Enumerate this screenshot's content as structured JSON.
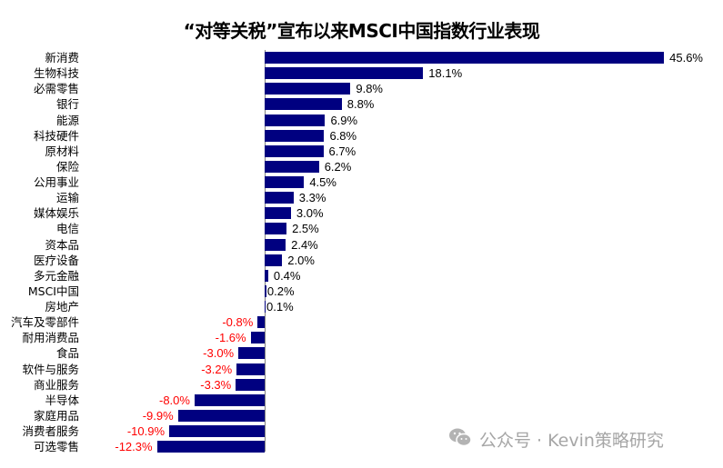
{
  "chart_data": {
    "type": "bar",
    "orientation": "horizontal",
    "title": "“对等关税”宣布以来MSCI中国指数行业表现",
    "xlabel": "",
    "ylabel": "",
    "unit": "%",
    "grid": false,
    "legend": null,
    "bar_color": "#000080",
    "positive_label_color": "#000000",
    "negative_label_color": "#ff0000",
    "categories": [
      "新消费",
      "生物科技",
      "必需零售",
      "银行",
      "能源",
      "科技硬件",
      "原材料",
      "保险",
      "公用事业",
      "运输",
      "媒体娱乐",
      "电信",
      "资本品",
      "医疗设备",
      "多元金融",
      "MSCI中国",
      "房地产",
      "汽车及零部件",
      "耐用消费品",
      "食品",
      "软件与服务",
      "商业服务",
      "半导体",
      "家庭用品",
      "消费者服务",
      "可选零售"
    ],
    "values": [
      45.6,
      18.1,
      9.8,
      8.8,
      6.9,
      6.8,
      6.7,
      6.2,
      4.5,
      3.3,
      3.0,
      2.5,
      2.4,
      2.0,
      0.4,
      0.2,
      0.1,
      -0.8,
      -1.6,
      -3.0,
      -3.2,
      -3.3,
      -8.0,
      -9.9,
      -10.9,
      -12.3
    ],
    "labels": [
      "45.6%",
      "18.1%",
      "9.8%",
      "8.8%",
      "6.9%",
      "6.8%",
      "6.7%",
      "6.2%",
      "4.5%",
      "3.3%",
      "3.0%",
      "2.5%",
      "2.4%",
      "2.0%",
      "0.4%",
      "0.2%",
      "0.1%",
      "-0.8%",
      "-1.6%",
      "-3.0%",
      "-3.2%",
      "-3.3%",
      "-8.0%",
      "-9.9%",
      "-10.9%",
      "-12.3%"
    ]
  },
  "watermark": {
    "icon": "wechat-icon",
    "text": "公众号 · Kevin策略研究"
  }
}
